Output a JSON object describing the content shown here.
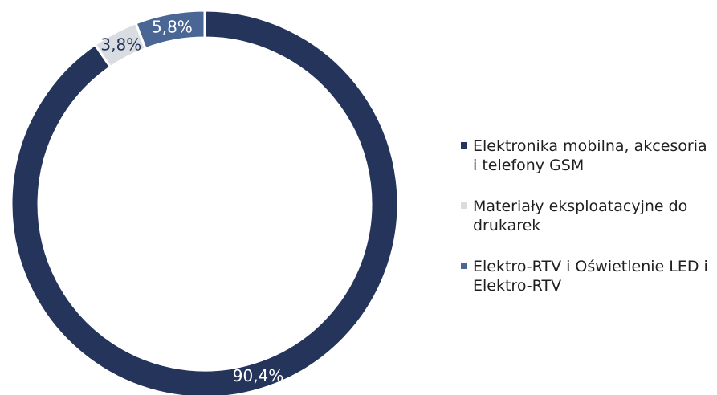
{
  "chart_data": {
    "type": "pie",
    "donut": true,
    "title": "",
    "slices": [
      {
        "label": "Elektronika mobilna, akcesoria i telefony GSM",
        "value": 90.4,
        "display": "90,4%",
        "color": "#24345a",
        "label_color": "#ffffff"
      },
      {
        "label": "Materiały eksploatacyjne do drukarek",
        "value": 3.8,
        "display": "3,8%",
        "color": "#d9dce0",
        "label_color": "#24345a"
      },
      {
        "label": "Elektro-RTV i Oświetlenie LED i Elektro-RTV",
        "value": 5.8,
        "display": "5,8%",
        "color": "#4a6694",
        "label_color": "#ffffff"
      }
    ],
    "legend_position": "right"
  },
  "legend": {
    "items": [
      {
        "label": "Elektronika mobilna, akcesoria i telefony GSM",
        "color": "#24345a"
      },
      {
        "label": "Materiały eksploatacyjne do drukarek",
        "color": "#d9dce0"
      },
      {
        "label": "Elektro-RTV i Oświetlenie LED i Elektro-RTV",
        "color": "#4a6694"
      }
    ]
  }
}
